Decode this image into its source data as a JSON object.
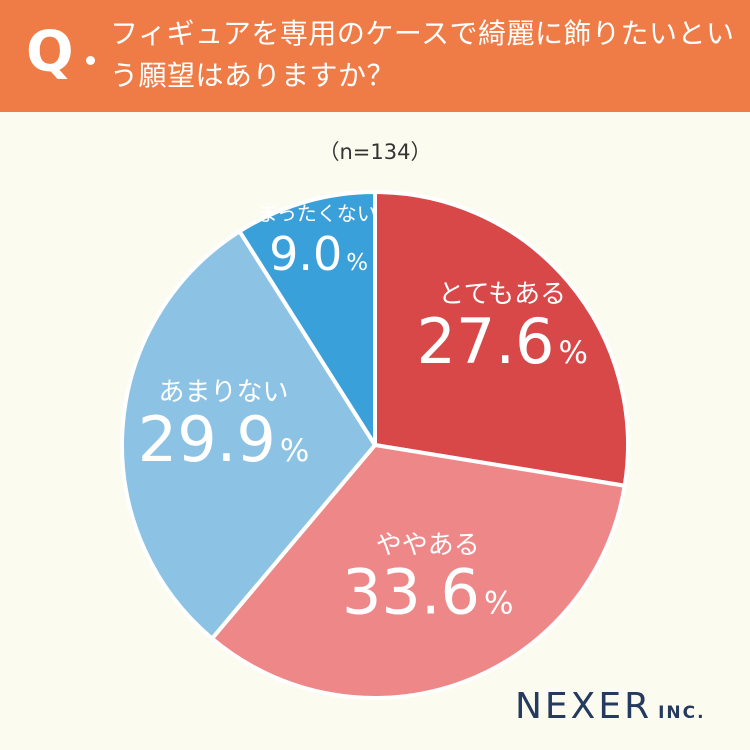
{
  "header": {
    "q_letter": "Q",
    "question": "フィギュアを専用のケースで綺麗に飾りたいという願望はありますか？"
  },
  "sample": "（n=134）",
  "chart_data": {
    "type": "pie",
    "unit": "%",
    "categories": [
      "とてもある",
      "ややある",
      "あまりない",
      "まったくない"
    ],
    "values": [
      27.6,
      33.6,
      29.9,
      9.0
    ],
    "value_labels": [
      "27.6",
      "33.6",
      "29.9",
      "9.0"
    ],
    "colors": [
      "#d94848",
      "#ee8888",
      "#8cc3e4",
      "#3aa0da"
    ]
  },
  "logo": {
    "main": "NEXER",
    "sub": "INC."
  }
}
